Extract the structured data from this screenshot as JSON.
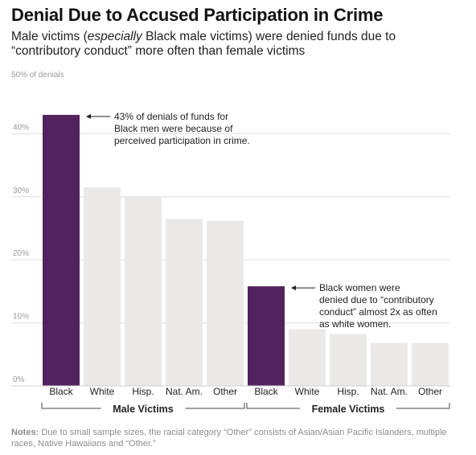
{
  "header": {
    "title": "Denial Due to Accused Participation in Crime",
    "subtitle_pre": "Male victims (",
    "subtitle_em": "especially",
    "subtitle_post": " Black male victims) were denied funds due to “contributory conduct” more often than female victims"
  },
  "chart_data": {
    "type": "bar",
    "y_unit_label": "50% of denials",
    "ylim": [
      0,
      50
    ],
    "y_ticks": [
      {
        "value": 0,
        "label": "0%"
      },
      {
        "value": 10,
        "label": "10%"
      },
      {
        "value": 20,
        "label": "20%"
      },
      {
        "value": 30,
        "label": "30%"
      },
      {
        "value": 40,
        "label": "40%"
      }
    ],
    "grid": true,
    "groups": [
      {
        "name": "Male Victims",
        "categories": [
          "Black",
          "White",
          "Hisp.",
          "Nat. Am.",
          "Other"
        ],
        "values": [
          43,
          31.5,
          30,
          26.5,
          26.2
        ]
      },
      {
        "name": "Female Victims",
        "categories": [
          "Black",
          "White",
          "Hisp.",
          "Nat. Am.",
          "Other"
        ],
        "values": [
          15.8,
          9,
          8.2,
          6.8,
          6.8
        ]
      }
    ],
    "annotations": [
      {
        "group": 0,
        "index": 0,
        "lines": [
          "43% of denials of funds for",
          "Black men were because of",
          "perceived participation in crime."
        ]
      },
      {
        "group": 1,
        "index": 0,
        "lines": [
          "Black women were",
          "denied due to “contributory",
          "conduct” almost 2x as often",
          "as white women."
        ]
      }
    ]
  },
  "colors": {
    "highlight": "#52225e",
    "bar": "#ebe8e8",
    "grid": "#dddddd",
    "axis_text": "#999999"
  },
  "notes": {
    "label": "Notes:",
    "text": " Due to small sample sizes, the racial category “Other” consists of Asian/Asian Pacific Islanders, multiple races, Native Hawaiians and “Other.”"
  }
}
